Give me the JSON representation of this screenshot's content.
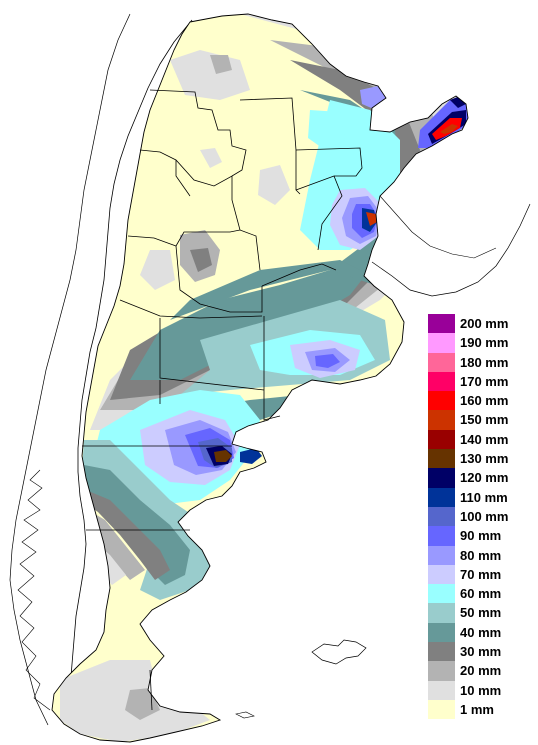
{
  "legend": {
    "items": [
      {
        "label": "200 mm",
        "color": "#990099"
      },
      {
        "label": "190 mm",
        "color": "#ff99ff"
      },
      {
        "label": "180 mm",
        "color": "#ff6699"
      },
      {
        "label": "170 mm",
        "color": "#ff0066"
      },
      {
        "label": "160 mm",
        "color": "#ff0000"
      },
      {
        "label": "150 mm",
        "color": "#cc3300"
      },
      {
        "label": "140 mm",
        "color": "#990000"
      },
      {
        "label": "130 mm",
        "color": "#663300"
      },
      {
        "label": "120 mm",
        "color": "#000066"
      },
      {
        "label": "110 mm",
        "color": "#003399"
      },
      {
        "label": "100 mm",
        "color": "#5566cc"
      },
      {
        "label": "90 mm",
        "color": "#6666ff"
      },
      {
        "label": "80 mm",
        "color": "#9999ff"
      },
      {
        "label": "70 mm",
        "color": "#ccccff"
      },
      {
        "label": "60 mm",
        "color": "#99ffff"
      },
      {
        "label": "50 mm",
        "color": "#99cccc"
      },
      {
        "label": "40 mm",
        "color": "#669999"
      },
      {
        "label": "30 mm",
        "color": "#808080"
      },
      {
        "label": "20 mm",
        "color": "#b3b3b3"
      },
      {
        "label": "10 mm",
        "color": "#e0e0e0"
      },
      {
        "label": "1 mm",
        "color": "#ffffcc"
      }
    ]
  },
  "map": {
    "subject": "Argentina precipitation map"
  }
}
